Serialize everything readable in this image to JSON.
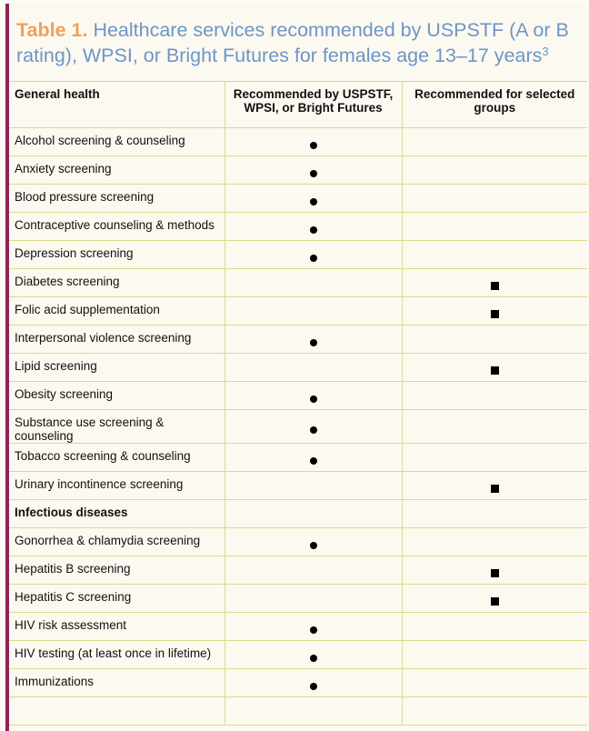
{
  "title": {
    "label": "Table 1.",
    "text": "Healthcare services recommended by USPSTF (A or B rating), WPSI, or Bright Futures for females age 13–17 years",
    "superscript": "3"
  },
  "columns": [
    "General health",
    "Recommended by USPSTF, WPSI, or Bright Futures",
    "Recommended for selected groups"
  ],
  "legend_marks": {
    "dot": "recommended (circle)",
    "square": "selected groups (square)"
  },
  "rows": [
    {
      "label": "Alcohol screening & counseling",
      "mark": "dot"
    },
    {
      "label": "Anxiety screening",
      "mark": "dot"
    },
    {
      "label": "Blood pressure screening",
      "mark": "dot"
    },
    {
      "label": "Contraceptive counseling & methods",
      "mark": "dot"
    },
    {
      "label": "Depression screening",
      "mark": "dot"
    },
    {
      "label": "Diabetes screening",
      "mark": "square"
    },
    {
      "label": "Folic acid supplementation",
      "mark": "square"
    },
    {
      "label": "Interpersonal violence screening",
      "mark": "dot"
    },
    {
      "label": "Lipid screening",
      "mark": "square"
    },
    {
      "label": "Obesity screening",
      "mark": "dot"
    },
    {
      "label": "Substance use screening & counseling",
      "mark": "dot"
    },
    {
      "label": "Tobacco screening & counseling",
      "mark": "dot"
    },
    {
      "label": "Urinary incontinence screening",
      "mark": "square"
    },
    {
      "label": "Infectious diseases",
      "section": true
    },
    {
      "label": "Gonorrhea & chlamydia screening",
      "mark": "dot"
    },
    {
      "label": "Hepatitis B screening",
      "mark": "square"
    },
    {
      "label": "Hepatitis C screening",
      "mark": "square"
    },
    {
      "label": "HIV risk assessment",
      "mark": "dot"
    },
    {
      "label": "HIV testing (at least once in lifetime)",
      "mark": "dot"
    },
    {
      "label": "Immunizations",
      "mark": "dot"
    },
    {
      "label": "",
      "mark": ""
    }
  ],
  "colors": {
    "accent_orange": "#f0a05c",
    "title_blue": "#6b96c6",
    "side_bar": "#8e2456",
    "grid": "#dcd98a"
  }
}
